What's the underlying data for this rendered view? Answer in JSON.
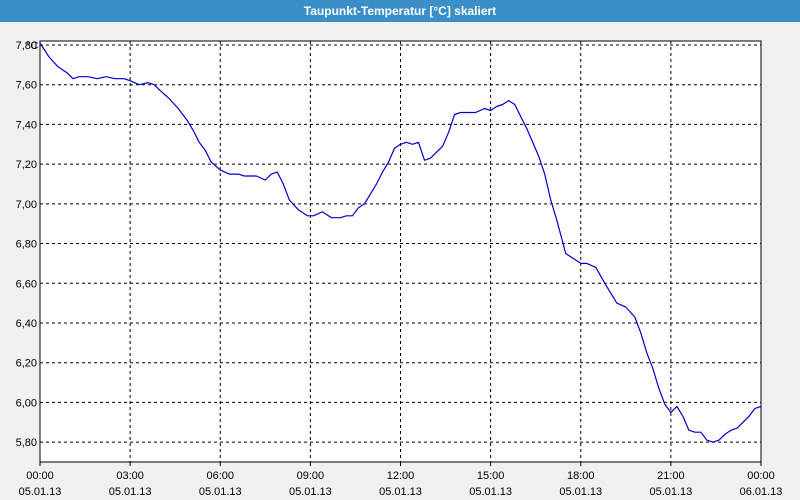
{
  "window": {
    "title": "Taupunkt-Temperatur [°C] skaliert"
  },
  "chart_data": {
    "type": "line",
    "title": "Taupunkt-Temperatur [°C] skaliert",
    "ylabel": "°C",
    "xlabel": "",
    "ylim": [
      5.7,
      7.82
    ],
    "xlim": [
      0,
      24
    ],
    "grid": true,
    "y_ticks": [
      "7,80",
      "7,60",
      "7,40",
      "7,20",
      "7,00",
      "6,80",
      "6,60",
      "6,40",
      "6,20",
      "6,00",
      "5,80"
    ],
    "y_tick_values": [
      7.8,
      7.6,
      7.4,
      7.2,
      7.0,
      6.8,
      6.6,
      6.4,
      6.2,
      6.0,
      5.8
    ],
    "x_ticks": [
      {
        "time": "00:00",
        "date": "05.01.13",
        "hour": 0
      },
      {
        "time": "03:00",
        "date": "05.01.13",
        "hour": 3
      },
      {
        "time": "06:00",
        "date": "05.01.13",
        "hour": 6
      },
      {
        "time": "09:00",
        "date": "05.01.13",
        "hour": 9
      },
      {
        "time": "12:00",
        "date": "05.01.13",
        "hour": 12
      },
      {
        "time": "15:00",
        "date": "05.01.13",
        "hour": 15
      },
      {
        "time": "18:00",
        "date": "05.01.13",
        "hour": 18
      },
      {
        "time": "21:00",
        "date": "05.01.13",
        "hour": 21
      },
      {
        "time": "00:00",
        "date": "06.01.13",
        "hour": 24
      }
    ],
    "series": [
      {
        "color": "#0000cc",
        "x": [
          0,
          0.3,
          0.6,
          0.9,
          1.1,
          1.3,
          1.6,
          1.9,
          2.2,
          2.5,
          2.8,
          3.0,
          3.3,
          3.6,
          3.8,
          4.0,
          4.3,
          4.6,
          4.9,
          5.1,
          5.3,
          5.5,
          5.7,
          6.0,
          6.3,
          6.6,
          6.8,
          7.0,
          7.2,
          7.5,
          7.7,
          7.9,
          8.1,
          8.3,
          8.6,
          8.9,
          9.1,
          9.4,
          9.7,
          10.0,
          10.2,
          10.4,
          10.6,
          10.8,
          11.0,
          11.2,
          11.4,
          11.6,
          11.8,
          12.0,
          12.2,
          12.4,
          12.6,
          12.8,
          13.0,
          13.2,
          13.4,
          13.6,
          13.8,
          14.0,
          14.2,
          14.5,
          14.8,
          15.0,
          15.2,
          15.4,
          15.6,
          15.8,
          16.0,
          16.2,
          16.4,
          16.6,
          16.8,
          17.0,
          17.2,
          17.5,
          17.8,
          18.0,
          18.2,
          18.5,
          18.8,
          19.0,
          19.2,
          19.5,
          19.8,
          20.0,
          20.2,
          20.4,
          20.6,
          20.8,
          21.0,
          21.2,
          21.4,
          21.6,
          21.8,
          22.0,
          22.2,
          22.4,
          22.6,
          22.8,
          23.0,
          23.2,
          23.4,
          23.6,
          23.8,
          24.0
        ],
        "y": [
          7.81,
          7.74,
          7.69,
          7.66,
          7.63,
          7.64,
          7.64,
          7.63,
          7.64,
          7.63,
          7.63,
          7.62,
          7.6,
          7.61,
          7.6,
          7.57,
          7.53,
          7.48,
          7.42,
          7.37,
          7.31,
          7.27,
          7.21,
          7.17,
          7.15,
          7.15,
          7.14,
          7.14,
          7.14,
          7.12,
          7.15,
          7.16,
          7.1,
          7.02,
          6.97,
          6.94,
          6.94,
          6.96,
          6.93,
          6.93,
          6.94,
          6.94,
          6.98,
          7.0,
          7.05,
          7.1,
          7.16,
          7.21,
          7.28,
          7.3,
          7.31,
          7.3,
          7.31,
          7.22,
          7.23,
          7.26,
          7.29,
          7.36,
          7.45,
          7.46,
          7.46,
          7.46,
          7.48,
          7.47,
          7.49,
          7.5,
          7.52,
          7.5,
          7.44,
          7.38,
          7.31,
          7.24,
          7.15,
          7.02,
          6.92,
          6.75,
          6.72,
          6.7,
          6.7,
          6.68,
          6.6,
          6.55,
          6.5,
          6.48,
          6.43,
          6.35,
          6.25,
          6.17,
          6.07,
          5.99,
          5.95,
          5.98,
          5.93,
          5.86,
          5.85,
          5.85,
          5.81,
          5.8,
          5.81,
          5.84,
          5.86,
          5.87,
          5.9,
          5.93,
          5.97,
          5.98
        ]
      }
    ]
  }
}
